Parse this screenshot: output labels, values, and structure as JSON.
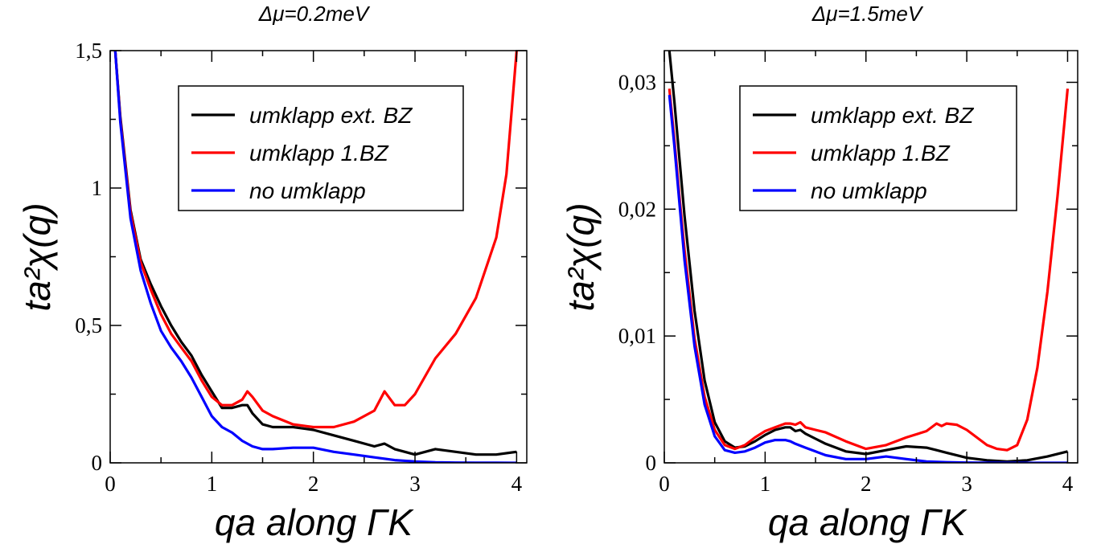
{
  "chart_data": [
    {
      "type": "line",
      "title": "Δμ=0.2meV",
      "xlabel": "qa along ΓK",
      "ylabel": "ta²χ(q)",
      "xlim": [
        0,
        4.1
      ],
      "ylim": [
        0,
        1.5
      ],
      "xticks": [
        0,
        1,
        2,
        3,
        4
      ],
      "xtick_labels": [
        "0",
        "1",
        "2",
        "3",
        "4"
      ],
      "yticks": [
        0,
        0.5,
        1,
        1.5
      ],
      "ytick_labels": [
        "0",
        "0,5",
        "1",
        "1,5"
      ],
      "legend_position": "top-right",
      "series": [
        {
          "name": "umklapp ext. BZ",
          "color": "#000000",
          "x": [
            0.05,
            0.1,
            0.2,
            0.3,
            0.4,
            0.5,
            0.6,
            0.7,
            0.8,
            0.9,
            1.0,
            1.1,
            1.2,
            1.3,
            1.35,
            1.4,
            1.5,
            1.6,
            1.8,
            2.0,
            2.2,
            2.4,
            2.6,
            2.7,
            2.8,
            3.0,
            3.2,
            3.4,
            3.6,
            3.8,
            4.0
          ],
          "y": [
            1.5,
            1.26,
            0.92,
            0.74,
            0.65,
            0.57,
            0.5,
            0.44,
            0.39,
            0.32,
            0.26,
            0.2,
            0.2,
            0.21,
            0.21,
            0.18,
            0.14,
            0.13,
            0.13,
            0.12,
            0.1,
            0.08,
            0.06,
            0.07,
            0.05,
            0.03,
            0.05,
            0.04,
            0.03,
            0.03,
            0.04
          ]
        },
        {
          "name": "umklapp 1.BZ",
          "color": "#ff0000",
          "x": [
            0.05,
            0.1,
            0.2,
            0.3,
            0.4,
            0.5,
            0.6,
            0.7,
            0.8,
            0.9,
            1.0,
            1.1,
            1.2,
            1.3,
            1.35,
            1.4,
            1.5,
            1.6,
            1.8,
            2.0,
            2.2,
            2.4,
            2.6,
            2.7,
            2.8,
            2.9,
            3.0,
            3.2,
            3.4,
            3.6,
            3.8,
            3.9,
            4.0
          ],
          "y": [
            1.5,
            1.25,
            0.91,
            0.73,
            0.63,
            0.54,
            0.47,
            0.42,
            0.37,
            0.3,
            0.24,
            0.21,
            0.21,
            0.23,
            0.26,
            0.24,
            0.19,
            0.17,
            0.14,
            0.13,
            0.13,
            0.15,
            0.19,
            0.26,
            0.21,
            0.21,
            0.25,
            0.38,
            0.47,
            0.6,
            0.82,
            1.05,
            1.5
          ]
        },
        {
          "name": "no umklapp",
          "color": "#0000ff",
          "x": [
            0.05,
            0.1,
            0.2,
            0.3,
            0.4,
            0.5,
            0.6,
            0.7,
            0.8,
            0.9,
            1.0,
            1.1,
            1.2,
            1.3,
            1.4,
            1.5,
            1.6,
            1.8,
            2.0,
            2.2,
            2.4,
            2.6,
            2.8,
            3.0,
            3.2,
            3.4,
            3.6,
            3.8,
            4.0
          ],
          "y": [
            1.5,
            1.24,
            0.89,
            0.7,
            0.58,
            0.48,
            0.42,
            0.37,
            0.31,
            0.24,
            0.17,
            0.13,
            0.11,
            0.08,
            0.06,
            0.05,
            0.05,
            0.055,
            0.055,
            0.04,
            0.03,
            0.02,
            0.01,
            0.005,
            0.002,
            0.001,
            0.0005,
            0.0002,
            0.0001
          ]
        }
      ]
    },
    {
      "type": "line",
      "title": "Δμ=1.5meV",
      "xlabel": "qa along ΓK",
      "ylabel": "ta²χ(q)",
      "xlim": [
        0,
        4.1
      ],
      "ylim": [
        0,
        0.0325
      ],
      "xticks": [
        0,
        1,
        2,
        3,
        4
      ],
      "xtick_labels": [
        "0",
        "1",
        "2",
        "3",
        "4"
      ],
      "yticks": [
        0,
        0.01,
        0.02,
        0.03
      ],
      "ytick_labels": [
        "0",
        "0,01",
        "0,02",
        "0,03"
      ],
      "legend_position": "top-right",
      "series": [
        {
          "name": "umklapp ext. BZ",
          "color": "#000000",
          "x": [
            0.05,
            0.1,
            0.15,
            0.2,
            0.3,
            0.4,
            0.5,
            0.6,
            0.7,
            0.8,
            0.9,
            1.0,
            1.1,
            1.2,
            1.25,
            1.3,
            1.35,
            1.4,
            1.5,
            1.6,
            1.8,
            2.0,
            2.2,
            2.4,
            2.6,
            2.7,
            2.8,
            3.0,
            3.2,
            3.4,
            3.6,
            3.8,
            4.0
          ],
          "y": [
            0.0325,
            0.0285,
            0.024,
            0.0195,
            0.012,
            0.0065,
            0.0032,
            0.0017,
            0.0012,
            0.0013,
            0.0017,
            0.0022,
            0.0026,
            0.0028,
            0.0028,
            0.0025,
            0.0026,
            0.0023,
            0.0019,
            0.0015,
            0.0009,
            0.0007,
            0.001,
            0.0013,
            0.0012,
            0.001,
            0.0008,
            0.0004,
            0.0002,
            0.0001,
            0.0002,
            0.0005,
            0.0009
          ]
        },
        {
          "name": "umklapp 1.BZ",
          "color": "#ff0000",
          "x": [
            0.05,
            0.1,
            0.15,
            0.2,
            0.3,
            0.4,
            0.5,
            0.6,
            0.7,
            0.8,
            0.9,
            1.0,
            1.1,
            1.2,
            1.25,
            1.3,
            1.35,
            1.4,
            1.5,
            1.6,
            1.8,
            2.0,
            2.2,
            2.4,
            2.6,
            2.7,
            2.75,
            2.8,
            2.9,
            3.0,
            3.1,
            3.2,
            3.3,
            3.4,
            3.5,
            3.6,
            3.7,
            3.8,
            3.9,
            4.0
          ],
          "y": [
            0.0295,
            0.0255,
            0.021,
            0.0168,
            0.0098,
            0.0052,
            0.0026,
            0.0014,
            0.0011,
            0.0014,
            0.002,
            0.0025,
            0.0028,
            0.0031,
            0.0031,
            0.003,
            0.0032,
            0.0028,
            0.0026,
            0.0024,
            0.0017,
            0.0011,
            0.0014,
            0.002,
            0.0025,
            0.0031,
            0.0029,
            0.0031,
            0.003,
            0.0026,
            0.002,
            0.0014,
            0.0011,
            0.001,
            0.0014,
            0.0034,
            0.0075,
            0.0135,
            0.021,
            0.0295
          ]
        },
        {
          "name": "no umklapp",
          "color": "#0000ff",
          "x": [
            0.05,
            0.1,
            0.15,
            0.2,
            0.3,
            0.4,
            0.5,
            0.6,
            0.7,
            0.8,
            0.9,
            1.0,
            1.1,
            1.2,
            1.25,
            1.3,
            1.4,
            1.5,
            1.6,
            1.8,
            2.0,
            2.2,
            2.4,
            2.6,
            2.8,
            3.0,
            3.2,
            3.4,
            3.6,
            3.8,
            4.0
          ],
          "y": [
            0.029,
            0.025,
            0.0205,
            0.016,
            0.0092,
            0.0046,
            0.0021,
            0.001,
            0.0008,
            0.0009,
            0.0012,
            0.0016,
            0.0018,
            0.0018,
            0.0017,
            0.0015,
            0.0012,
            0.0009,
            0.0006,
            0.0003,
            0.0003,
            0.0005,
            0.0003,
            0.0001,
            5e-05,
            2e-05,
            1e-05,
            0,
            0,
            0,
            0
          ]
        }
      ]
    }
  ]
}
